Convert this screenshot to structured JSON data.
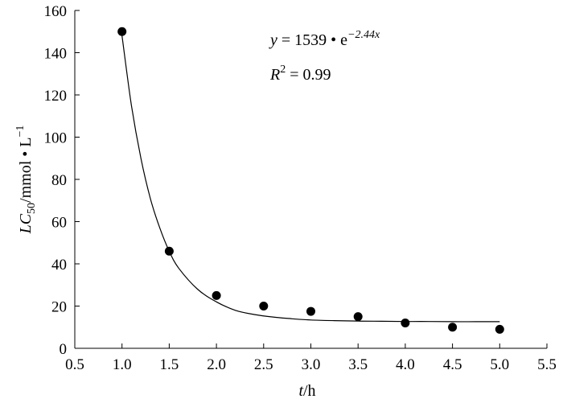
{
  "chart_data": {
    "type": "scatter",
    "title": "",
    "x_axis": {
      "label_var": "t",
      "label_unit": "/h",
      "range": [
        0.5,
        5.5
      ],
      "ticks": [
        0.5,
        1.0,
        1.5,
        2.0,
        2.5,
        3.0,
        3.5,
        4.0,
        4.5,
        5.0,
        5.5
      ],
      "tick_labels": [
        "0.5",
        "1.0",
        "1.5",
        "2.0",
        "2.5",
        "3.0",
        "3.5",
        "4.0",
        "4.5",
        "5.0",
        "5.5"
      ]
    },
    "y_axis": {
      "label_var": "LC",
      "label_sub": "50",
      "label_unit": "/mmol • L",
      "label_sup": "−1",
      "range": [
        0,
        160
      ],
      "ticks": [
        0,
        20,
        40,
        60,
        80,
        100,
        120,
        140,
        160
      ],
      "tick_labels": [
        "0",
        "20",
        "40",
        "60",
        "80",
        "100",
        "120",
        "140",
        "160"
      ]
    },
    "grid": false,
    "legend": "none",
    "points": {
      "x": [
        1.0,
        1.5,
        2.0,
        2.5,
        3.0,
        3.5,
        4.0,
        4.5,
        5.0
      ],
      "y": [
        150,
        46,
        25,
        20,
        17.5,
        15,
        12,
        10,
        9
      ]
    },
    "fit_curve": {
      "x": [
        1.0,
        1.1,
        1.2,
        1.3,
        1.4,
        1.5,
        1.6,
        1.8,
        2.0,
        2.2,
        2.4,
        2.6,
        2.8,
        3.0,
        3.25,
        3.5,
        3.75,
        4.0,
        4.25,
        4.5,
        4.75,
        5.0
      ],
      "y": [
        148,
        115,
        90,
        71,
        57,
        46,
        38,
        28,
        22,
        18,
        16,
        14.8,
        14,
        13.4,
        13.1,
        12.9,
        12.8,
        12.7,
        12.7,
        12.6,
        12.6,
        12.6
      ]
    },
    "annotations": {
      "equation": {
        "lhs": "y",
        "eq": " = 1539 • e",
        "exponent": "−2.44x"
      },
      "r2": {
        "lhs": "R",
        "sup": "2",
        "rhs": " = 0.99"
      }
    }
  }
}
